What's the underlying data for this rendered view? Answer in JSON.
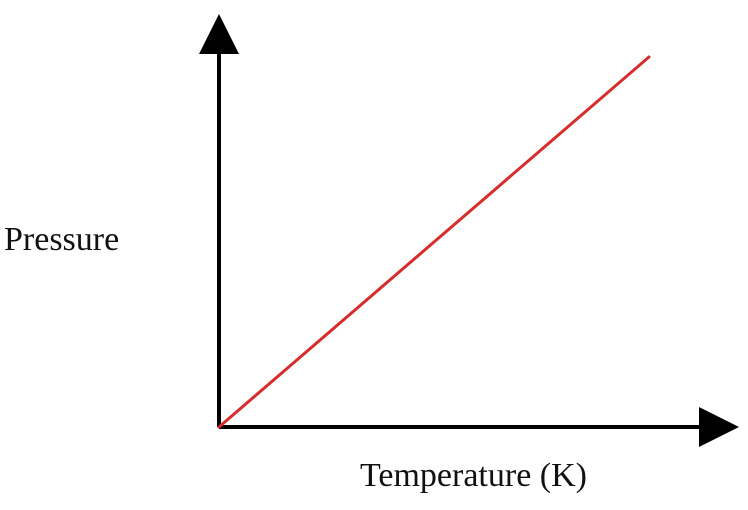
{
  "chart_data": {
    "type": "line",
    "title": "",
    "xlabel": "Temperature (K)",
    "ylabel": "Pressure",
    "xlim": [
      0,
      1
    ],
    "ylim": [
      0,
      1
    ],
    "grid": false,
    "legend": "none",
    "series": [
      {
        "x": [
          0,
          1
        ],
        "y": [
          0,
          1
        ],
        "color": "#d62d2d"
      }
    ],
    "axis_color": "#000000"
  }
}
